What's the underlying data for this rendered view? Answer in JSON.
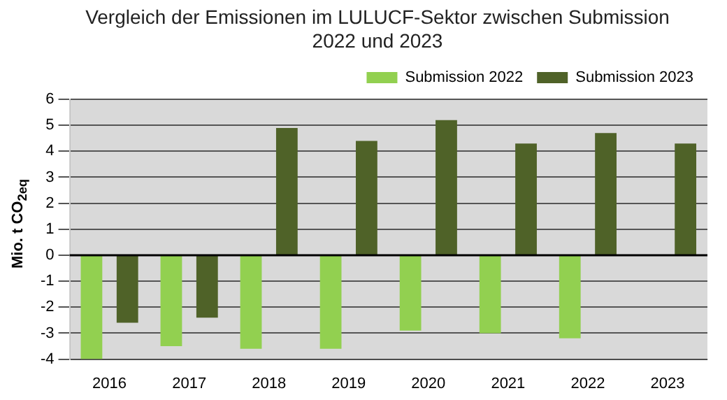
{
  "chart_data": {
    "type": "bar",
    "title": "Vergleich der Emissionen im LULUCF-Sektor zwischen Submission 2022 und 2023",
    "ylabel": "Mio. t CO$_{2eq}$",
    "categories": [
      "2016",
      "2017",
      "2018",
      "2019",
      "2020",
      "2021",
      "2022",
      "2023"
    ],
    "series": [
      {
        "name": "Submission 2022",
        "color": "#92d050",
        "values": [
          -4.0,
          -3.5,
          -3.6,
          -3.6,
          -2.9,
          -3.0,
          -3.2,
          null
        ]
      },
      {
        "name": "Submission 2023",
        "color": "#4f6228",
        "values": [
          -2.6,
          -2.4,
          4.9,
          4.4,
          5.2,
          4.3,
          4.7,
          4.3
        ]
      }
    ],
    "ylim": [
      -4,
      6
    ],
    "yticks": [
      -4,
      -3,
      -2,
      -1,
      0,
      1,
      2,
      3,
      4,
      5,
      6
    ],
    "grid": "y",
    "legend": "top right"
  }
}
